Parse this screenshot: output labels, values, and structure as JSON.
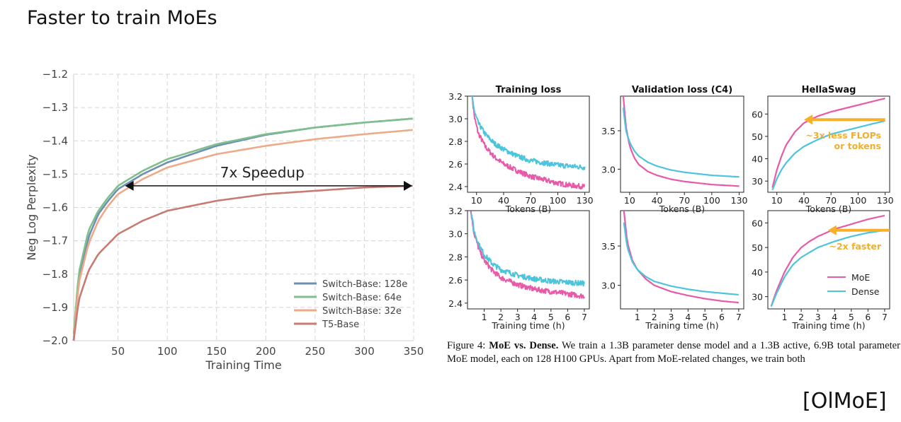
{
  "slide": {
    "title": "Faster to train MoEs",
    "citation": "[OlMoE]"
  },
  "caption": {
    "label": "Figure 4:",
    "bold": "MoE vs. Dense.",
    "text": "We train a 1.3B parameter dense model and a 1.3B active, 6.9B total parameter MoE model, each on 128 H100 GPUs. Apart from MoE-related changes, we train both"
  },
  "colors": {
    "switch128": "#6f8fb5",
    "switch64": "#7fbf8c",
    "switch32": "#eeaa88",
    "t5": "#c77b72",
    "moe": "#e85aa8",
    "dense": "#4cc4dc",
    "arrow_orange": "#f6b02a",
    "annotation_orange": "#f2ae2e"
  },
  "chart_data": [
    {
      "type": "line",
      "xlabel": "Training Time",
      "ylabel": "Neg Log Perplexity",
      "xlim": [
        5,
        350
      ],
      "ylim": [
        -2.0,
        -1.2
      ],
      "xticks": [
        50,
        100,
        150,
        200,
        250,
        300,
        350
      ],
      "yticks": [
        -2.0,
        -1.9,
        -1.8,
        -1.7,
        -1.6,
        -1.5,
        -1.4,
        -1.3,
        -1.2
      ],
      "grid": true,
      "legend_position": "bottom-right",
      "annotation": {
        "text": "7x Speedup",
        "x_start": 50,
        "x_end": 350,
        "y": -1.535
      },
      "series": [
        {
          "name": "Switch-Base: 128e",
          "color_key": "switch128",
          "x": [
            5,
            10,
            20,
            30,
            40,
            50,
            75,
            100,
            150,
            200,
            250,
            300,
            350
          ],
          "y": [
            -2.0,
            -1.82,
            -1.69,
            -1.62,
            -1.58,
            -1.545,
            -1.5,
            -1.465,
            -1.415,
            -1.382,
            -1.36,
            -1.345,
            -1.333
          ]
        },
        {
          "name": "Switch-Base: 64e",
          "color_key": "switch64",
          "x": [
            5,
            10,
            20,
            30,
            40,
            50,
            75,
            100,
            150,
            200,
            250,
            300,
            350
          ],
          "y": [
            -1.98,
            -1.8,
            -1.67,
            -1.61,
            -1.57,
            -1.535,
            -1.49,
            -1.455,
            -1.41,
            -1.38,
            -1.36,
            -1.345,
            -1.333
          ]
        },
        {
          "name": "Switch-Base: 32e",
          "color_key": "switch32",
          "x": [
            5,
            10,
            20,
            30,
            40,
            50,
            75,
            100,
            150,
            200,
            250,
            300,
            350
          ],
          "y": [
            -2.0,
            -1.83,
            -1.71,
            -1.64,
            -1.595,
            -1.56,
            -1.515,
            -1.48,
            -1.44,
            -1.415,
            -1.395,
            -1.38,
            -1.367
          ]
        },
        {
          "name": "T5-Base",
          "color_key": "t5",
          "x": [
            5,
            10,
            20,
            30,
            40,
            50,
            75,
            100,
            150,
            200,
            250,
            300,
            350
          ],
          "y": [
            -2.0,
            -1.88,
            -1.79,
            -1.74,
            -1.71,
            -1.68,
            -1.64,
            -1.61,
            -1.58,
            -1.56,
            -1.55,
            -1.54,
            -1.535
          ]
        }
      ]
    },
    {
      "type": "line",
      "title": "Training loss",
      "xlabel": "Tokens (B)",
      "xticks": [
        10,
        40,
        70,
        100,
        130
      ],
      "yticks": [
        2.4,
        2.6,
        2.8,
        3.0,
        3.2
      ],
      "xlim": [
        0,
        135
      ],
      "ylim": [
        2.35,
        3.2
      ],
      "series": [
        {
          "name": "MoE",
          "color_key": "moe",
          "noisy": true,
          "x": [
            5,
            8,
            12,
            20,
            30,
            40,
            55,
            70,
            85,
            100,
            115,
            130
          ],
          "y": [
            3.2,
            3.0,
            2.87,
            2.75,
            2.66,
            2.6,
            2.54,
            2.49,
            2.46,
            2.43,
            2.41,
            2.4
          ]
        },
        {
          "name": "Dense",
          "color_key": "dense",
          "noisy": true,
          "x": [
            5,
            8,
            12,
            20,
            30,
            40,
            55,
            70,
            85,
            100,
            115,
            130
          ],
          "y": [
            3.2,
            3.05,
            2.96,
            2.86,
            2.78,
            2.73,
            2.67,
            2.63,
            2.61,
            2.59,
            2.58,
            2.57
          ]
        }
      ]
    },
    {
      "type": "line",
      "title": "Validation loss (C4)",
      "xlabel": "Tokens (B)",
      "xticks": [
        10,
        40,
        70,
        100,
        130
      ],
      "yticks": [
        3.0,
        3.5
      ],
      "xlim": [
        0,
        135
      ],
      "ylim": [
        2.7,
        3.95
      ],
      "series": [
        {
          "name": "MoE",
          "color_key": "moe",
          "x": [
            3,
            6,
            10,
            15,
            20,
            30,
            40,
            55,
            70,
            85,
            100,
            115,
            130
          ],
          "y": [
            3.95,
            3.55,
            3.3,
            3.15,
            3.06,
            2.97,
            2.92,
            2.87,
            2.84,
            2.82,
            2.8,
            2.79,
            2.78
          ]
        },
        {
          "name": "Dense",
          "color_key": "dense",
          "x": [
            3,
            6,
            10,
            15,
            20,
            30,
            40,
            55,
            70,
            85,
            100,
            115,
            130
          ],
          "y": [
            3.8,
            3.5,
            3.35,
            3.24,
            3.17,
            3.09,
            3.04,
            2.99,
            2.96,
            2.94,
            2.92,
            2.91,
            2.9
          ]
        }
      ]
    },
    {
      "type": "line",
      "title": "HellaSwag",
      "xlabel": "Tokens (B)",
      "xticks": [
        10,
        40,
        70,
        100,
        130
      ],
      "yticks": [
        30,
        40,
        50,
        60
      ],
      "xlim": [
        0,
        135
      ],
      "ylim": [
        25,
        68
      ],
      "annotation": {
        "text_lines": [
          "~3x less FLOPs",
          "or tokens"
        ],
        "arrow_from_x": 130,
        "arrow_to_x": 40,
        "y": 57.5
      },
      "series": [
        {
          "name": "MoE",
          "color_key": "moe",
          "x": [
            5,
            10,
            15,
            20,
            30,
            40,
            55,
            70,
            85,
            100,
            115,
            130
          ],
          "y": [
            27,
            35,
            41,
            46,
            52,
            56,
            59,
            61,
            62.5,
            64,
            65.5,
            67
          ]
        },
        {
          "name": "Dense",
          "color_key": "dense",
          "x": [
            5,
            10,
            15,
            20,
            30,
            40,
            55,
            70,
            85,
            100,
            115,
            130
          ],
          "y": [
            26,
            31,
            35,
            38,
            42.5,
            45.5,
            48.5,
            51,
            52.5,
            54,
            55.5,
            57
          ]
        }
      ]
    },
    {
      "type": "line",
      "xlabel": "Training time (h)",
      "xticks": [
        1,
        2,
        3,
        4,
        5,
        6,
        7
      ],
      "yticks": [
        2.4,
        2.6,
        2.8,
        3.0,
        3.2
      ],
      "xlim": [
        0,
        7.3
      ],
      "ylim": [
        2.35,
        3.2
      ],
      "series": [
        {
          "name": "MoE",
          "color_key": "moe",
          "noisy": true,
          "x": [
            0.2,
            0.4,
            0.7,
            1,
            1.5,
            2,
            3,
            4,
            5,
            6,
            7
          ],
          "y": [
            3.2,
            3.0,
            2.86,
            2.77,
            2.68,
            2.62,
            2.56,
            2.52,
            2.5,
            2.48,
            2.46
          ]
        },
        {
          "name": "Dense",
          "color_key": "dense",
          "noisy": true,
          "x": [
            0.2,
            0.4,
            0.7,
            1,
            1.5,
            2,
            3,
            4,
            5,
            6,
            7
          ],
          "y": [
            3.2,
            3.02,
            2.9,
            2.82,
            2.74,
            2.69,
            2.64,
            2.61,
            2.59,
            2.58,
            2.57
          ]
        }
      ]
    },
    {
      "type": "line",
      "xlabel": "Training time (h)",
      "xticks": [
        1,
        2,
        3,
        4,
        5,
        6,
        7
      ],
      "yticks": [
        3.0,
        3.5
      ],
      "xlim": [
        0,
        7.3
      ],
      "ylim": [
        2.7,
        3.95
      ],
      "series": [
        {
          "name": "MoE",
          "color_key": "moe",
          "x": [
            0.2,
            0.4,
            0.7,
            1,
            1.5,
            2,
            3,
            4,
            5,
            6,
            7
          ],
          "y": [
            3.95,
            3.55,
            3.32,
            3.2,
            3.08,
            3.0,
            2.92,
            2.87,
            2.83,
            2.8,
            2.78
          ]
        },
        {
          "name": "Dense",
          "color_key": "dense",
          "x": [
            0.2,
            0.4,
            0.7,
            1,
            1.5,
            2,
            3,
            4,
            5,
            6,
            7
          ],
          "y": [
            3.8,
            3.48,
            3.3,
            3.2,
            3.11,
            3.05,
            2.99,
            2.95,
            2.92,
            2.9,
            2.88
          ]
        }
      ]
    },
    {
      "type": "line",
      "xlabel": "Training time (h)",
      "xticks": [
        1,
        2,
        3,
        4,
        5,
        6,
        7
      ],
      "yticks": [
        30,
        40,
        50,
        60
      ],
      "xlim": [
        0,
        7.3
      ],
      "ylim": [
        25,
        65
      ],
      "legend_position": "bottom-right",
      "annotation": {
        "text_lines": [
          "~2x faster"
        ],
        "arrow_from_x": 7.3,
        "arrow_to_x": 3.6,
        "y": 57
      },
      "series": [
        {
          "name": "MoE",
          "color_key": "moe",
          "x": [
            0.2,
            0.5,
            1,
            1.5,
            2,
            2.5,
            3,
            4,
            5,
            6,
            7
          ],
          "y": [
            26,
            32,
            40,
            46,
            50,
            52.5,
            54.5,
            57.5,
            59.5,
            61.5,
            63
          ]
        },
        {
          "name": "Dense",
          "color_key": "dense",
          "x": [
            0.2,
            0.5,
            1,
            1.5,
            2,
            2.5,
            3,
            4,
            5,
            6,
            7
          ],
          "y": [
            26,
            31,
            38,
            43,
            46,
            48,
            50,
            52.5,
            54.5,
            56,
            57
          ]
        }
      ]
    }
  ]
}
